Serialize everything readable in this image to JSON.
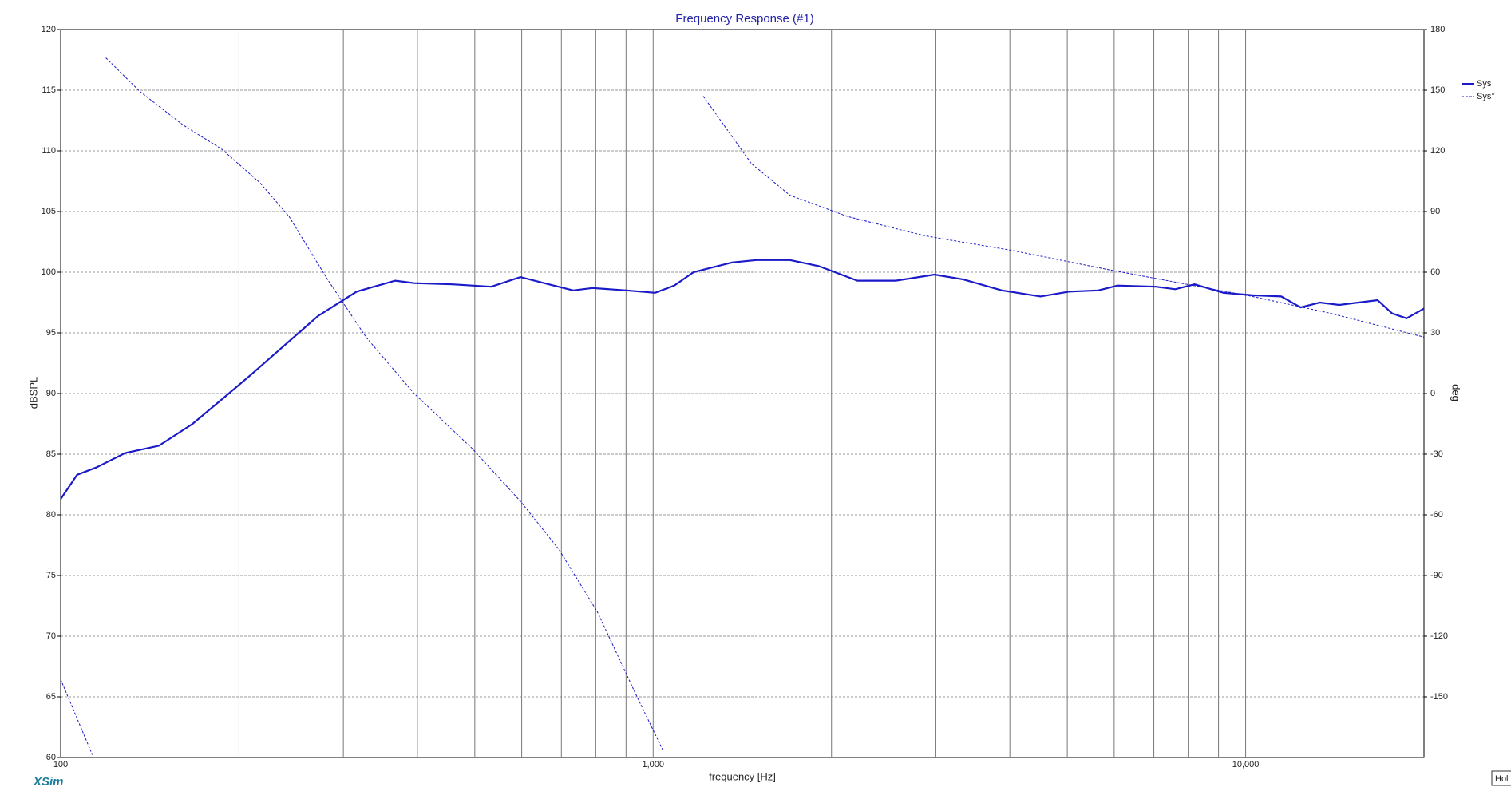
{
  "chart_data": {
    "type": "line",
    "title": "Frequency Response (#1)",
    "x_label": "frequency [Hz]",
    "y_label": "dBSPL",
    "y2_label": "deg",
    "xscale": "log",
    "xlim": [
      100,
      20000
    ],
    "xticks": [
      100,
      {
        "value": 1000,
        "label": "1,000"
      },
      {
        "value": 10000,
        "label": "10,000"
      }
    ],
    "xgrid_minor": [
      200,
      300,
      400,
      500,
      600,
      700,
      800,
      900,
      2000,
      3000,
      4000,
      5000,
      6000,
      7000,
      8000,
      9000
    ],
    "ylim": [
      60,
      120
    ],
    "yticks": [
      60,
      65,
      70,
      75,
      80,
      85,
      90,
      95,
      100,
      105,
      110,
      115,
      120
    ],
    "y2lim": [
      -180,
      180
    ],
    "y2ticks": [
      -150,
      -120,
      -90,
      -60,
      -30,
      0,
      30,
      60,
      90,
      120,
      150,
      180
    ],
    "grid": true,
    "legend": "right-top",
    "watermark": "XSim",
    "status": "Hol",
    "series": [
      {
        "name": "Sys",
        "color": "#1a1ac8",
        "style": "solid",
        "x": [
          100,
          106.6,
          114.8,
          128.5,
          146.5,
          167,
          186.9,
          209,
          243,
          272,
          316,
          367,
          395,
          459,
          533,
          597,
          667,
          733,
          790,
          901,
          1008,
          1086,
          1170,
          1359,
          1493,
          1702,
          1904,
          2212,
          2569,
          2984,
          3339,
          3878,
          4506,
          5039,
          5639,
          6077,
          7063,
          7608,
          8200,
          9175,
          10265,
          11486,
          12380,
          13340,
          14380,
          15500,
          16700,
          17670,
          18690,
          20000
        ],
        "values": [
          81.3,
          83.3,
          83.9,
          85.1,
          85.7,
          87.5,
          89.5,
          91.5,
          94.3,
          96.4,
          98.4,
          99.3,
          99.1,
          99.0,
          98.8,
          99.6,
          99.0,
          98.5,
          98.7,
          98.5,
          98.3,
          98.9,
          100.0,
          100.8,
          101.0,
          101.0,
          100.5,
          99.3,
          99.3,
          99.8,
          99.4,
          98.5,
          98.0,
          98.4,
          98.5,
          98.9,
          98.8,
          98.6,
          99.0,
          98.3,
          98.1,
          98.0,
          97.1,
          97.5,
          97.3,
          97.5,
          97.7,
          96.6,
          96.2,
          97.0
        ]
      },
      {
        "name": "Sys°",
        "color": "#1a1ac8",
        "style": "dashed",
        "axis": "y2",
        "x": [
          100,
          113.1,
          114.4,
          119.2,
          135.9,
          160.9,
          186.9,
          217,
          243,
          282,
          328,
          395,
          495,
          597,
          693,
          805,
          934,
          1038,
          1058,
          1215,
          1465,
          1702,
          2131,
          2873,
          4026,
          5855,
          7900,
          10265,
          13860,
          20000
        ],
        "values": [
          -141.4,
          -178.6,
          null,
          166,
          149.5,
          132.8,
          120.9,
          104.2,
          87.5,
          56.5,
          27.7,
          0,
          -27.2,
          -53.3,
          -77,
          -108,
          -148.5,
          -176.2,
          null,
          147,
          113.7,
          98,
          87.5,
          78,
          70.8,
          61.3,
          54.2,
          48.0,
          39.8,
          27.9
        ]
      }
    ]
  }
}
